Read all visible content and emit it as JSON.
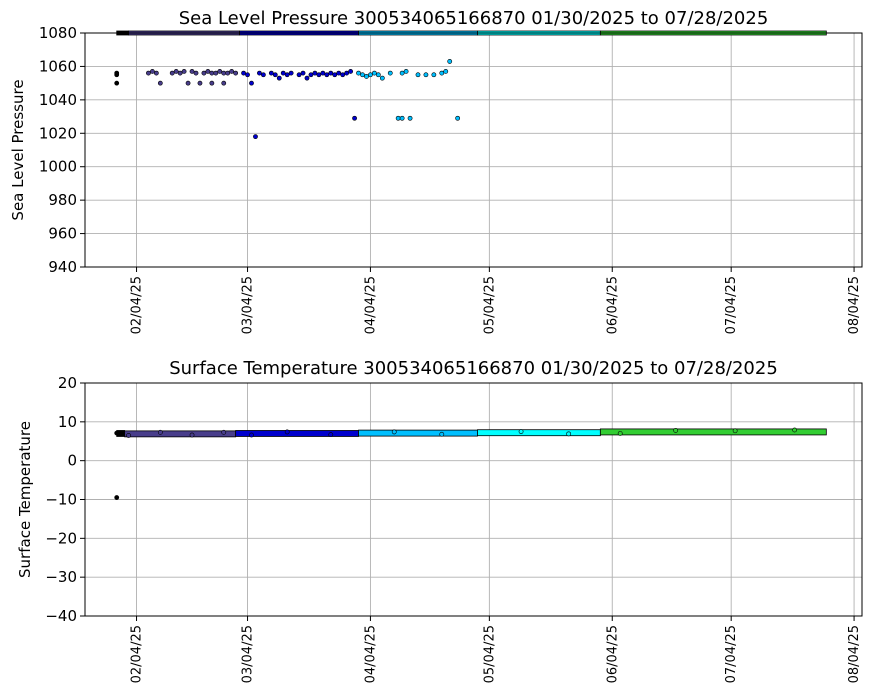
{
  "chart_data": [
    {
      "type": "scatter",
      "title": "Sea Level Pressure 300534065166870  01/30/2025 to 07/28/2025",
      "ylabel": "Sea Level Pressure",
      "xlabel": "",
      "xlim": [
        "2025-01-22",
        "2025-08-06"
      ],
      "ylim": [
        940,
        1080
      ],
      "yticks": [
        940,
        960,
        980,
        1000,
        1020,
        1040,
        1060,
        1080
      ],
      "xticks": [
        "2025-02-04",
        "2025-03-04",
        "2025-04-04",
        "2025-05-04",
        "2025-06-04",
        "2025-07-04",
        "2025-08-04"
      ],
      "xtick_labels": [
        "02/04/25",
        "03/04/25",
        "04/04/25",
        "05/04/25",
        "06/04/25",
        "07/04/25",
        "08/04/25"
      ],
      "grid": true,
      "series": [
        {
          "color": "#000000",
          "band": {
            "start": "2025-01-30",
            "end": "2025-02-02",
            "y": 1080
          },
          "points": [
            [
              "2025-01-30",
              1056
            ],
            [
              "2025-01-30",
              1055
            ],
            [
              "2025-01-30",
              1050
            ]
          ]
        },
        {
          "color": "#483d8b",
          "band": {
            "start": "2025-02-02",
            "end": "2025-03-02",
            "y": 1080
          },
          "points": [
            [
              "2025-02-07",
              1056
            ],
            [
              "2025-02-08",
              1057
            ],
            [
              "2025-02-09",
              1056
            ],
            [
              "2025-02-10",
              1050
            ],
            [
              "2025-02-13",
              1056
            ],
            [
              "2025-02-14",
              1057
            ],
            [
              "2025-02-15",
              1056
            ],
            [
              "2025-02-16",
              1057
            ],
            [
              "2025-02-17",
              1050
            ],
            [
              "2025-02-18",
              1057
            ],
            [
              "2025-02-19",
              1056
            ],
            [
              "2025-02-20",
              1050
            ],
            [
              "2025-02-21",
              1056
            ],
            [
              "2025-02-22",
              1057
            ],
            [
              "2025-02-23",
              1056
            ],
            [
              "2025-02-23",
              1050
            ],
            [
              "2025-02-24",
              1056
            ],
            [
              "2025-02-25",
              1057
            ],
            [
              "2025-02-26",
              1056
            ],
            [
              "2025-02-26",
              1050
            ],
            [
              "2025-02-27",
              1056
            ],
            [
              "2025-02-28",
              1057
            ],
            [
              "2025-03-01",
              1056
            ]
          ]
        },
        {
          "color": "#0000cd",
          "band": {
            "start": "2025-03-02",
            "end": "2025-04-01",
            "y": 1080
          },
          "points": [
            [
              "2025-03-03",
              1056
            ],
            [
              "2025-03-04",
              1055
            ],
            [
              "2025-03-05",
              1050
            ],
            [
              "2025-03-06",
              1018
            ],
            [
              "2025-03-07",
              1056
            ],
            [
              "2025-03-08",
              1055
            ],
            [
              "2025-03-10",
              1056
            ],
            [
              "2025-03-11",
              1055
            ],
            [
              "2025-03-12",
              1053
            ],
            [
              "2025-03-13",
              1056
            ],
            [
              "2025-03-14",
              1055
            ],
            [
              "2025-03-15",
              1056
            ],
            [
              "2025-03-17",
              1055
            ],
            [
              "2025-03-18",
              1056
            ],
            [
              "2025-03-19",
              1053
            ],
            [
              "2025-03-20",
              1055
            ],
            [
              "2025-03-21",
              1056
            ],
            [
              "2025-03-22",
              1055
            ],
            [
              "2025-03-23",
              1056
            ],
            [
              "2025-03-24",
              1055
            ],
            [
              "2025-03-25",
              1056
            ],
            [
              "2025-03-26",
              1055
            ],
            [
              "2025-03-27",
              1056
            ],
            [
              "2025-03-28",
              1055
            ],
            [
              "2025-03-29",
              1056
            ],
            [
              "2025-03-30",
              1057
            ],
            [
              "2025-03-31",
              1029
            ]
          ]
        },
        {
          "color": "#00bfff",
          "band": {
            "start": "2025-04-01",
            "end": "2025-05-01",
            "y": 1080
          },
          "points": [
            [
              "2025-04-01",
              1056
            ],
            [
              "2025-04-02",
              1055
            ],
            [
              "2025-04-03",
              1054
            ],
            [
              "2025-04-04",
              1055
            ],
            [
              "2025-04-05",
              1056
            ],
            [
              "2025-04-06",
              1055
            ],
            [
              "2025-04-07",
              1053
            ],
            [
              "2025-04-09",
              1056
            ],
            [
              "2025-04-11",
              1029
            ],
            [
              "2025-04-12",
              1056
            ],
            [
              "2025-04-12",
              1029
            ],
            [
              "2025-04-13",
              1057
            ],
            [
              "2025-04-14",
              1029
            ],
            [
              "2025-04-16",
              1055
            ],
            [
              "2025-04-18",
              1055
            ],
            [
              "2025-04-20",
              1055
            ],
            [
              "2025-04-22",
              1056
            ],
            [
              "2025-04-23",
              1057
            ],
            [
              "2025-04-24",
              1063
            ],
            [
              "2025-04-26",
              1029
            ]
          ]
        },
        {
          "color": "#00ffff",
          "band": {
            "start": "2025-05-01",
            "end": "2025-06-01",
            "y": 1080
          },
          "points": []
        },
        {
          "color": "#32cd32",
          "band": {
            "start": "2025-06-01",
            "end": "2025-07-28",
            "y": 1080
          },
          "points": []
        }
      ]
    },
    {
      "type": "scatter",
      "title": "Surface Temperature 300534065166870  01/30/2025 to 07/28/2025",
      "ylabel": "Surface Temperature",
      "xlabel": "",
      "xlim": [
        "2025-01-22",
        "2025-08-06"
      ],
      "ylim": [
        -40,
        20
      ],
      "yticks": [
        -40,
        -30,
        -20,
        -10,
        0,
        10,
        20
      ],
      "xticks": [
        "2025-02-04",
        "2025-03-04",
        "2025-04-04",
        "2025-05-04",
        "2025-06-04",
        "2025-07-04",
        "2025-08-04"
      ],
      "xtick_labels": [
        "02/04/25",
        "03/04/25",
        "04/04/25",
        "05/04/25",
        "06/04/25",
        "07/04/25",
        "08/04/25"
      ],
      "grid": true,
      "series": [
        {
          "color": "#000000",
          "band": {
            "start": "2025-01-30",
            "end": "2025-02-01",
            "y": 7.0
          },
          "points": [
            [
              "2025-01-30",
              -9.5
            ],
            [
              "2025-01-30",
              7.1
            ]
          ]
        },
        {
          "color": "#483d8b",
          "band": {
            "start": "2025-02-01",
            "end": "2025-03-01",
            "y": 6.9
          },
          "points": [
            [
              "2025-02-02",
              6.5
            ],
            [
              "2025-02-10",
              7.3
            ],
            [
              "2025-02-18",
              6.6
            ],
            [
              "2025-02-26",
              7.3
            ]
          ]
        },
        {
          "color": "#0000cd",
          "band": {
            "start": "2025-03-01",
            "end": "2025-04-01",
            "y": 7.0
          },
          "points": [
            [
              "2025-03-05",
              6.6
            ],
            [
              "2025-03-14",
              7.4
            ],
            [
              "2025-03-25",
              6.7
            ]
          ]
        },
        {
          "color": "#00bfff",
          "band": {
            "start": "2025-04-01",
            "end": "2025-05-01",
            "y": 7.1
          },
          "points": [
            [
              "2025-04-10",
              7.4
            ],
            [
              "2025-04-22",
              6.8
            ]
          ]
        },
        {
          "color": "#00ffff",
          "band": {
            "start": "2025-05-01",
            "end": "2025-06-01",
            "y": 7.2
          },
          "points": [
            [
              "2025-05-12",
              7.5
            ],
            [
              "2025-05-24",
              6.9
            ]
          ]
        },
        {
          "color": "#32cd32",
          "band": {
            "start": "2025-06-01",
            "end": "2025-07-28",
            "y": 7.4
          },
          "points": [
            [
              "2025-06-06",
              7.0
            ],
            [
              "2025-06-20",
              7.8
            ],
            [
              "2025-07-05",
              7.7
            ],
            [
              "2025-07-20",
              7.9
            ]
          ]
        }
      ]
    }
  ]
}
